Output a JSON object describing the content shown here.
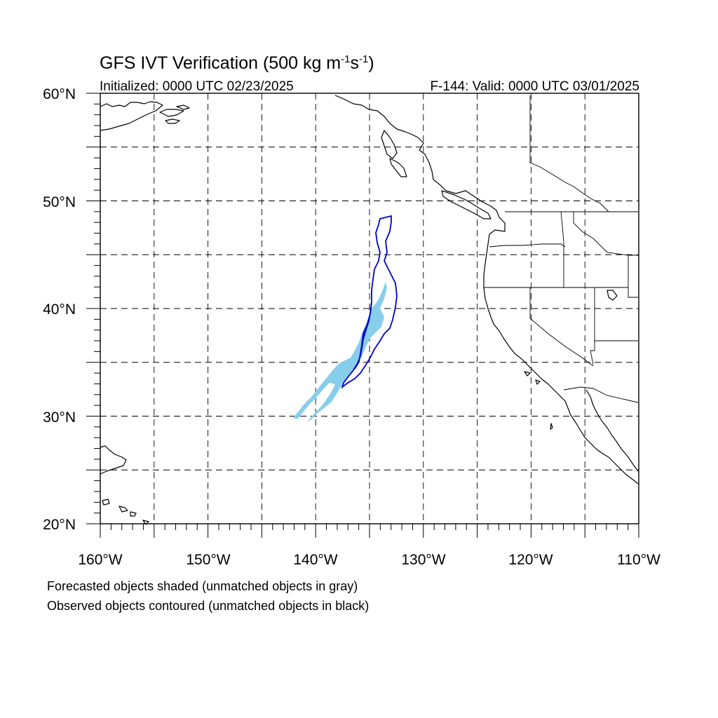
{
  "title": {
    "main": "GFS IVT Verification (500 kg m",
    "sup1": "-1",
    "mid": "s",
    "sup2": "-1",
    "end": ")"
  },
  "initialized": "Initialized: 0000 UTC 02/23/2025",
  "valid": "F-144: Valid: 0000 UTC 03/01/2025",
  "map": {
    "lon_range": [
      -160,
      -110
    ],
    "lat_range": [
      20,
      60
    ],
    "projection": "cylindrical equidistant",
    "lat_labels": [
      "60°N",
      "50°N",
      "40°N",
      "30°N",
      "20°N"
    ],
    "lon_labels": [
      "160°W",
      "150°W",
      "140°W",
      "130°W",
      "120°W",
      "110°W"
    ],
    "colors": {
      "forecast_matched": "#87CEEB",
      "observed_matched": "#0000CD",
      "coastline": "#000000"
    }
  },
  "footnotes": [
    "Forecasted objects shaded (unmatched objects in gray)",
    "Observed objects contoured (unmatched objects in black)"
  ]
}
